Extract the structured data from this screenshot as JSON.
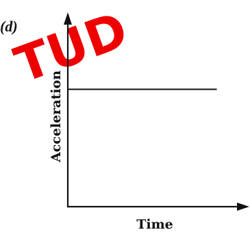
{
  "watermark": {
    "text": "TUD",
    "color": "#ee0000"
  },
  "chart_data": {
    "type": "line",
    "panel_label": "(d)",
    "xlabel": "Time",
    "ylabel": "Acceleration",
    "title": "",
    "grid": false,
    "xlim": [
      0,
      1
    ],
    "ylim": [
      0,
      1
    ],
    "series": [
      {
        "x": [
          0,
          0.86
        ],
        "y": [
          0.64,
          0.64
        ]
      }
    ]
  }
}
